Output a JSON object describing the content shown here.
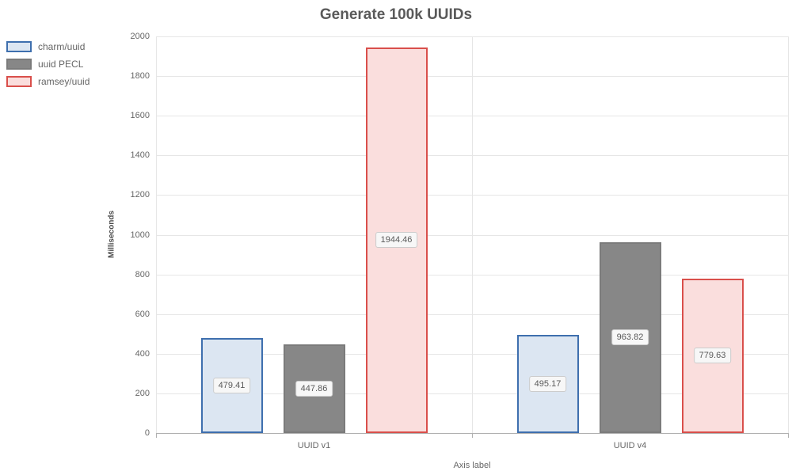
{
  "chart_data": {
    "type": "bar",
    "title": "Generate 100k UUIDs",
    "xlabel": "Axis label",
    "ylabel": "Milliseconds",
    "categories": [
      "UUID v1",
      "UUID v4"
    ],
    "series": [
      {
        "name": "charm/uuid",
        "values": [
          479.41,
          495.17
        ],
        "fill": "#dce6f2",
        "border": "#3e6fae"
      },
      {
        "name": "uuid PECL",
        "values": [
          447.86,
          963.82
        ],
        "fill": "#878787",
        "border": "#7b7b7b"
      },
      {
        "name": "ramsey/uuid",
        "values": [
          1944.46,
          779.63
        ],
        "fill": "#fadedd",
        "border": "#d94f4b"
      }
    ],
    "ylim": [
      0,
      2000
    ],
    "ytick_step": 200,
    "grid": true,
    "legend_position": "top-left",
    "data_labels": true,
    "colors": {
      "grid": "#e6e6e6",
      "axis_line": "#b0b0b0",
      "title_text": "#5a5a5a",
      "tick_text": "#666666",
      "data_label_bg": "#f7f7f7",
      "data_label_border": "#cccccc"
    }
  }
}
